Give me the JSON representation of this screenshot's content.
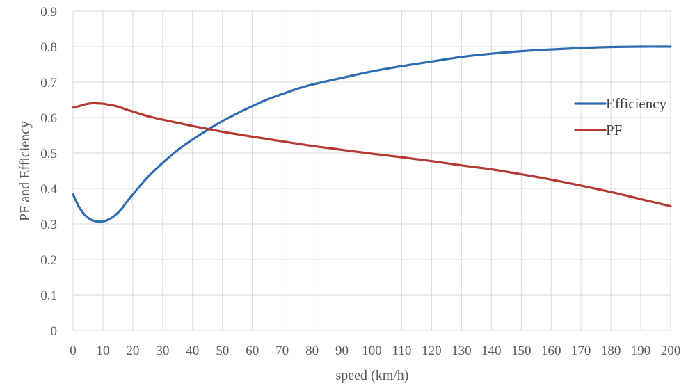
{
  "chart_data": {
    "type": "line",
    "title": "",
    "xlabel": "speed (km/h)",
    "ylabel": "PF and Efficiency",
    "xlim": [
      0,
      200
    ],
    "ylim": [
      0,
      0.9
    ],
    "x_ticks": [
      0,
      10,
      20,
      30,
      40,
      50,
      60,
      70,
      80,
      90,
      100,
      110,
      120,
      130,
      140,
      150,
      160,
      170,
      180,
      190,
      200
    ],
    "x_tick_labels": [
      "0",
      "10",
      "20",
      "30",
      "40",
      "50",
      "60",
      "70",
      "80",
      "90",
      "100",
      "110",
      "120",
      "130",
      "140",
      "150",
      "160",
      "170",
      "180",
      "190",
      "200"
    ],
    "y_ticks": [
      0,
      0.1,
      0.2,
      0.3,
      0.4,
      0.5,
      0.6,
      0.7,
      0.8,
      0.9
    ],
    "y_tick_labels": [
      "0",
      "0.1",
      "0.2",
      "0.3",
      "0.4",
      "0.5",
      "0.6",
      "0.7",
      "0.8",
      "0.9"
    ],
    "grid": true,
    "legend_position": "right",
    "series": [
      {
        "name": "Efficiency",
        "color": "#2e6bb0",
        "x": [
          0,
          2,
          4,
          6,
          8,
          10,
          12,
          14,
          16,
          18,
          20,
          25,
          30,
          35,
          40,
          45,
          50,
          55,
          60,
          65,
          70,
          75,
          80,
          90,
          100,
          110,
          120,
          130,
          140,
          150,
          160,
          170,
          180,
          190,
          200
        ],
        "y": [
          0.383,
          0.348,
          0.325,
          0.312,
          0.307,
          0.307,
          0.313,
          0.324,
          0.34,
          0.362,
          0.383,
          0.432,
          0.472,
          0.508,
          0.538,
          0.565,
          0.59,
          0.612,
          0.632,
          0.651,
          0.666,
          0.681,
          0.693,
          0.712,
          0.73,
          0.745,
          0.758,
          0.771,
          0.78,
          0.787,
          0.792,
          0.796,
          0.799,
          0.8,
          0.8
        ]
      },
      {
        "name": "PF",
        "color": "#b53a32",
        "x": [
          0,
          2,
          4,
          6,
          8,
          10,
          12,
          14,
          16,
          18,
          20,
          25,
          30,
          35,
          40,
          45,
          50,
          55,
          60,
          70,
          80,
          90,
          100,
          110,
          120,
          130,
          140,
          150,
          160,
          170,
          180,
          190,
          200
        ],
        "y": [
          0.628,
          0.632,
          0.637,
          0.64,
          0.64,
          0.639,
          0.636,
          0.633,
          0.628,
          0.622,
          0.617,
          0.604,
          0.594,
          0.585,
          0.576,
          0.568,
          0.56,
          0.553,
          0.546,
          0.533,
          0.52,
          0.509,
          0.498,
          0.488,
          0.477,
          0.465,
          0.454,
          0.44,
          0.425,
          0.408,
          0.39,
          0.37,
          0.35
        ]
      }
    ]
  }
}
